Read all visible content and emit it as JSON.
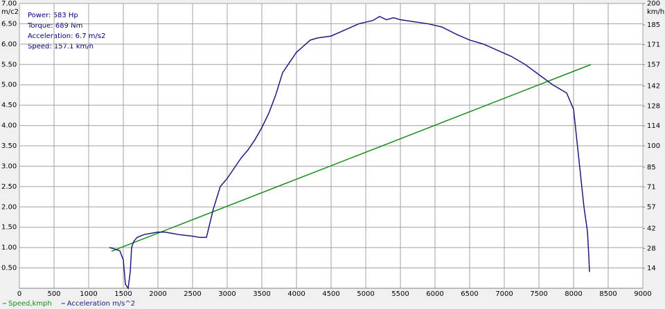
{
  "chart_data": {
    "type": "line",
    "y_label": "m/c2",
    "y2_label": "km/h",
    "annotations": [
      "Power: 583 Hp",
      "Torque: 689 Nm",
      "Acceleration: 6.7 m/s2",
      "Speed: 157.1 km/h"
    ],
    "xlim": [
      0,
      9000
    ],
    "xticks": [
      0,
      500,
      1000,
      1500,
      2000,
      2500,
      3000,
      3500,
      4000,
      4500,
      5000,
      5500,
      6000,
      6500,
      7000,
      7500,
      8000,
      8500,
      9000
    ],
    "ylim": [
      0,
      7
    ],
    "yticks": [
      {
        "value": 0.5,
        "label": "0.50"
      },
      {
        "value": 1,
        "label": "1.00"
      },
      {
        "value": 1.5,
        "label": "1.50"
      },
      {
        "value": 2,
        "label": "2.00"
      },
      {
        "value": 2.5,
        "label": "2.50"
      },
      {
        "value": 3,
        "label": "3.00"
      },
      {
        "value": 3.5,
        "label": "3.50"
      },
      {
        "value": 4,
        "label": "4.00"
      },
      {
        "value": 4.5,
        "label": "4.50"
      },
      {
        "value": 5,
        "label": "5.00"
      },
      {
        "value": 5.5,
        "label": "5.50"
      },
      {
        "value": 6,
        "label": "6.00"
      },
      {
        "value": 6.5,
        "label": "6.50"
      },
      {
        "value": 7,
        "label": "7.00"
      }
    ],
    "y2lim": [
      0,
      200
    ],
    "y2ticks": [
      14,
      28,
      42,
      57,
      71,
      85,
      100,
      114,
      128,
      142,
      157,
      171,
      185,
      200
    ],
    "grid": true,
    "series": [
      {
        "name": "Speed,kmph",
        "color": "#188a18",
        "axis": "y2",
        "x": [
          1330,
          8250
        ],
        "values": [
          26,
          157.1
        ]
      },
      {
        "name": "Acceleration m/s^2",
        "color": "#1a1a80",
        "x": [
          1300,
          1350,
          1400,
          1450,
          1500,
          1530,
          1570,
          1600,
          1620,
          1650,
          1700,
          1800,
          1900,
          2000,
          2100,
          2200,
          2300,
          2400,
          2500,
          2600,
          2700,
          2750,
          2800,
          2900,
          3000,
          3100,
          3200,
          3300,
          3400,
          3500,
          3600,
          3700,
          3800,
          3900,
          4000,
          4100,
          4200,
          4300,
          4500,
          4700,
          4900,
          5100,
          5200,
          5300,
          5400,
          5500,
          5700,
          5900,
          6100,
          6300,
          6500,
          6700,
          6900,
          7100,
          7300,
          7500,
          7700,
          7900,
          8000,
          8050,
          8100,
          8150,
          8200,
          8220,
          8230
        ],
        "values": [
          1.0,
          0.98,
          0.95,
          0.92,
          0.7,
          0.1,
          0.0,
          0.4,
          1.0,
          1.15,
          1.25,
          1.32,
          1.35,
          1.38,
          1.38,
          1.35,
          1.32,
          1.3,
          1.28,
          1.25,
          1.25,
          1.6,
          1.95,
          2.5,
          2.7,
          2.95,
          3.2,
          3.4,
          3.65,
          3.95,
          4.3,
          4.75,
          5.3,
          5.55,
          5.8,
          5.95,
          6.1,
          6.15,
          6.2,
          6.35,
          6.5,
          6.58,
          6.68,
          6.6,
          6.65,
          6.6,
          6.55,
          6.5,
          6.42,
          6.25,
          6.1,
          6.0,
          5.85,
          5.7,
          5.5,
          5.25,
          5.0,
          4.8,
          4.4,
          3.6,
          2.8,
          2.0,
          1.4,
          0.8,
          0.4
        ]
      }
    ]
  }
}
